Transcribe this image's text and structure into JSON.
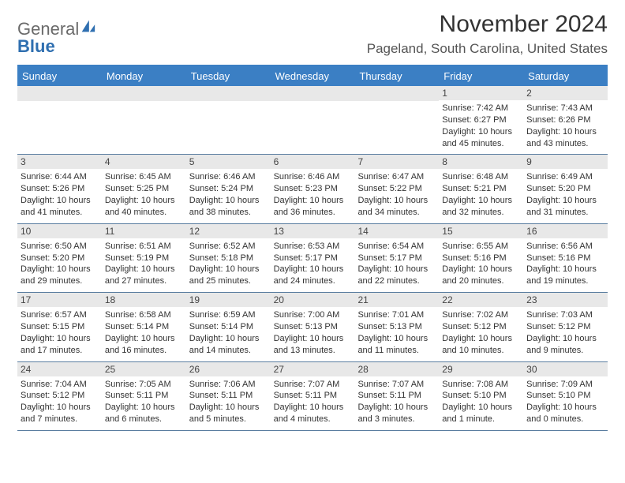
{
  "brand": {
    "part1": "General",
    "part2": "Blue"
  },
  "title": "November 2024",
  "location": "Pageland, South Carolina, United States",
  "colors": {
    "header_bg": "#3b7fc4",
    "header_text": "#ffffff",
    "daynum_bg": "#e8e8e8",
    "cell_text": "#333333",
    "rule": "#5a7da0",
    "brand_gray": "#6a6a6a",
    "brand_blue": "#2f6fb0"
  },
  "day_headers": [
    "Sunday",
    "Monday",
    "Tuesday",
    "Wednesday",
    "Thursday",
    "Friday",
    "Saturday"
  ],
  "weeks": [
    [
      {
        "blank": true
      },
      {
        "blank": true
      },
      {
        "blank": true
      },
      {
        "blank": true
      },
      {
        "blank": true
      },
      {
        "num": "1",
        "sunrise": "Sunrise: 7:42 AM",
        "sunset": "Sunset: 6:27 PM",
        "day1": "Daylight: 10 hours",
        "day2": "and 45 minutes."
      },
      {
        "num": "2",
        "sunrise": "Sunrise: 7:43 AM",
        "sunset": "Sunset: 6:26 PM",
        "day1": "Daylight: 10 hours",
        "day2": "and 43 minutes."
      }
    ],
    [
      {
        "num": "3",
        "sunrise": "Sunrise: 6:44 AM",
        "sunset": "Sunset: 5:26 PM",
        "day1": "Daylight: 10 hours",
        "day2": "and 41 minutes."
      },
      {
        "num": "4",
        "sunrise": "Sunrise: 6:45 AM",
        "sunset": "Sunset: 5:25 PM",
        "day1": "Daylight: 10 hours",
        "day2": "and 40 minutes."
      },
      {
        "num": "5",
        "sunrise": "Sunrise: 6:46 AM",
        "sunset": "Sunset: 5:24 PM",
        "day1": "Daylight: 10 hours",
        "day2": "and 38 minutes."
      },
      {
        "num": "6",
        "sunrise": "Sunrise: 6:46 AM",
        "sunset": "Sunset: 5:23 PM",
        "day1": "Daylight: 10 hours",
        "day2": "and 36 minutes."
      },
      {
        "num": "7",
        "sunrise": "Sunrise: 6:47 AM",
        "sunset": "Sunset: 5:22 PM",
        "day1": "Daylight: 10 hours",
        "day2": "and 34 minutes."
      },
      {
        "num": "8",
        "sunrise": "Sunrise: 6:48 AM",
        "sunset": "Sunset: 5:21 PM",
        "day1": "Daylight: 10 hours",
        "day2": "and 32 minutes."
      },
      {
        "num": "9",
        "sunrise": "Sunrise: 6:49 AM",
        "sunset": "Sunset: 5:20 PM",
        "day1": "Daylight: 10 hours",
        "day2": "and 31 minutes."
      }
    ],
    [
      {
        "num": "10",
        "sunrise": "Sunrise: 6:50 AM",
        "sunset": "Sunset: 5:20 PM",
        "day1": "Daylight: 10 hours",
        "day2": "and 29 minutes."
      },
      {
        "num": "11",
        "sunrise": "Sunrise: 6:51 AM",
        "sunset": "Sunset: 5:19 PM",
        "day1": "Daylight: 10 hours",
        "day2": "and 27 minutes."
      },
      {
        "num": "12",
        "sunrise": "Sunrise: 6:52 AM",
        "sunset": "Sunset: 5:18 PM",
        "day1": "Daylight: 10 hours",
        "day2": "and 25 minutes."
      },
      {
        "num": "13",
        "sunrise": "Sunrise: 6:53 AM",
        "sunset": "Sunset: 5:17 PM",
        "day1": "Daylight: 10 hours",
        "day2": "and 24 minutes."
      },
      {
        "num": "14",
        "sunrise": "Sunrise: 6:54 AM",
        "sunset": "Sunset: 5:17 PM",
        "day1": "Daylight: 10 hours",
        "day2": "and 22 minutes."
      },
      {
        "num": "15",
        "sunrise": "Sunrise: 6:55 AM",
        "sunset": "Sunset: 5:16 PM",
        "day1": "Daylight: 10 hours",
        "day2": "and 20 minutes."
      },
      {
        "num": "16",
        "sunrise": "Sunrise: 6:56 AM",
        "sunset": "Sunset: 5:16 PM",
        "day1": "Daylight: 10 hours",
        "day2": "and 19 minutes."
      }
    ],
    [
      {
        "num": "17",
        "sunrise": "Sunrise: 6:57 AM",
        "sunset": "Sunset: 5:15 PM",
        "day1": "Daylight: 10 hours",
        "day2": "and 17 minutes."
      },
      {
        "num": "18",
        "sunrise": "Sunrise: 6:58 AM",
        "sunset": "Sunset: 5:14 PM",
        "day1": "Daylight: 10 hours",
        "day2": "and 16 minutes."
      },
      {
        "num": "19",
        "sunrise": "Sunrise: 6:59 AM",
        "sunset": "Sunset: 5:14 PM",
        "day1": "Daylight: 10 hours",
        "day2": "and 14 minutes."
      },
      {
        "num": "20",
        "sunrise": "Sunrise: 7:00 AM",
        "sunset": "Sunset: 5:13 PM",
        "day1": "Daylight: 10 hours",
        "day2": "and 13 minutes."
      },
      {
        "num": "21",
        "sunrise": "Sunrise: 7:01 AM",
        "sunset": "Sunset: 5:13 PM",
        "day1": "Daylight: 10 hours",
        "day2": "and 11 minutes."
      },
      {
        "num": "22",
        "sunrise": "Sunrise: 7:02 AM",
        "sunset": "Sunset: 5:12 PM",
        "day1": "Daylight: 10 hours",
        "day2": "and 10 minutes."
      },
      {
        "num": "23",
        "sunrise": "Sunrise: 7:03 AM",
        "sunset": "Sunset: 5:12 PM",
        "day1": "Daylight: 10 hours",
        "day2": "and 9 minutes."
      }
    ],
    [
      {
        "num": "24",
        "sunrise": "Sunrise: 7:04 AM",
        "sunset": "Sunset: 5:12 PM",
        "day1": "Daylight: 10 hours",
        "day2": "and 7 minutes."
      },
      {
        "num": "25",
        "sunrise": "Sunrise: 7:05 AM",
        "sunset": "Sunset: 5:11 PM",
        "day1": "Daylight: 10 hours",
        "day2": "and 6 minutes."
      },
      {
        "num": "26",
        "sunrise": "Sunrise: 7:06 AM",
        "sunset": "Sunset: 5:11 PM",
        "day1": "Daylight: 10 hours",
        "day2": "and 5 minutes."
      },
      {
        "num": "27",
        "sunrise": "Sunrise: 7:07 AM",
        "sunset": "Sunset: 5:11 PM",
        "day1": "Daylight: 10 hours",
        "day2": "and 4 minutes."
      },
      {
        "num": "28",
        "sunrise": "Sunrise: 7:07 AM",
        "sunset": "Sunset: 5:11 PM",
        "day1": "Daylight: 10 hours",
        "day2": "and 3 minutes."
      },
      {
        "num": "29",
        "sunrise": "Sunrise: 7:08 AM",
        "sunset": "Sunset: 5:10 PM",
        "day1": "Daylight: 10 hours",
        "day2": "and 1 minute."
      },
      {
        "num": "30",
        "sunrise": "Sunrise: 7:09 AM",
        "sunset": "Sunset: 5:10 PM",
        "day1": "Daylight: 10 hours",
        "day2": "and 0 minutes."
      }
    ]
  ]
}
